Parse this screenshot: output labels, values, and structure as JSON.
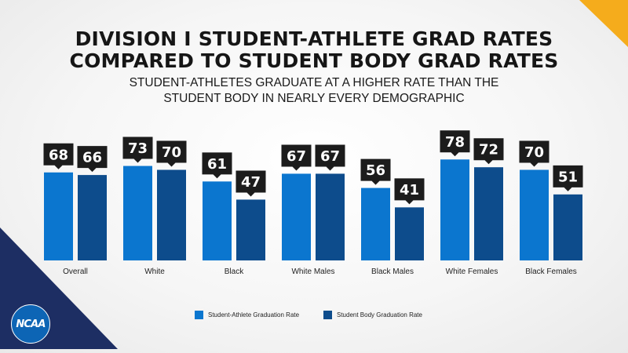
{
  "header": {
    "title_lines": [
      "DIVISION I STUDENT-ATHLETE GRAD RATES",
      "COMPARED TO STUDENT BODY GRAD RATES"
    ],
    "subtitle_lines": [
      "STUDENT-ATHLETES GRADUATE AT A HIGHER RATE THAN THE",
      "STUDENT BODY IN NEARLY EVERY DEMOGRAPHIC"
    ]
  },
  "colors": {
    "student_athlete": "#0b76cf",
    "student_body": "#0d4c8c",
    "label_box": "#1c1c1c",
    "label_text": "#ffffff",
    "accent_yellow": "#f5ac1c",
    "accent_navy": "#1d2e63"
  },
  "chart_data": {
    "type": "bar",
    "title": "DIVISION I STUDENT-ATHLETE GRAD RATES COMPARED TO STUDENT BODY GRAD RATES",
    "subtitle": "STUDENT-ATHLETES GRADUATE AT A HIGHER RATE THAN THE STUDENT BODY IN NEARLY EVERY DEMOGRAPHIC",
    "categories": [
      "Overall",
      "White",
      "Black",
      "White Males",
      "Black Males",
      "White Females",
      "Black Females"
    ],
    "series": [
      {
        "name": "Student-Athlete Graduation Rate",
        "values": [
          68,
          73,
          61,
          67,
          56,
          78,
          70
        ]
      },
      {
        "name": "Student Body Graduation Rate",
        "values": [
          66,
          70,
          47,
          67,
          41,
          72,
          51
        ]
      }
    ],
    "xlabel": "",
    "ylabel": "",
    "ylim": [
      0,
      100
    ],
    "grid": false,
    "legend_position": "bottom"
  },
  "logo": {
    "text": "NCAA"
  }
}
